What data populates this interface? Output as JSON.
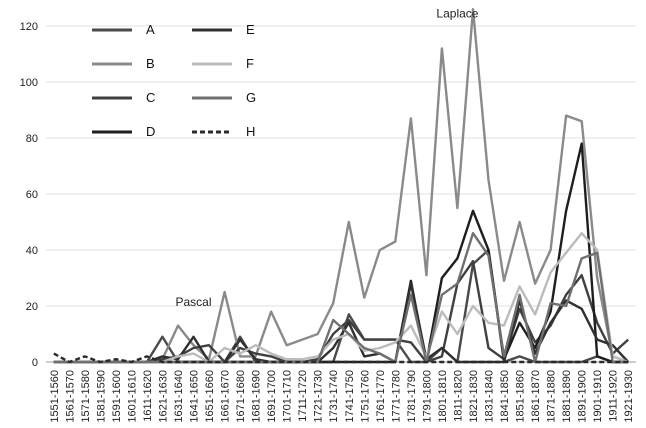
{
  "chart_data": {
    "type": "line",
    "ylim": [
      0,
      120
    ],
    "yticks": [
      0,
      20,
      40,
      60,
      80,
      100,
      120
    ],
    "grid": true,
    "legend_position": "top-left",
    "categories": [
      "1551-1560",
      "1561-1570",
      "1571-1580",
      "1581-1590",
      "1591-1600",
      "1601-1610",
      "1611-1620",
      "1621-1630",
      "1631-1640",
      "1641-1650",
      "1651-1660",
      "1661-1670",
      "1671-1680",
      "1681-1690",
      "1691-1700",
      "1701-1710",
      "1711-1720",
      "1721-1730",
      "1731-1740",
      "1741-1750",
      "1751-1760",
      "1761-1770",
      "1771-1780",
      "1781-1790",
      "1791-1800",
      "1801-1810",
      "1811-1820",
      "1821-1830",
      "1831-1840",
      "1841-1850",
      "1851-1860",
      "1861-1870",
      "1871-1880",
      "1881-1890",
      "1891-1900",
      "1901-1910",
      "1911-1920",
      "1921-1930"
    ],
    "series": [
      {
        "name": "A",
        "color": "#4a4a4a",
        "dash": "",
        "values": [
          0,
          0,
          0,
          0,
          0,
          0,
          0,
          9,
          0,
          0,
          0,
          0,
          9,
          0,
          0,
          0,
          0,
          0,
          0,
          17,
          8,
          8,
          8,
          0,
          0,
          5,
          0,
          35,
          40,
          0,
          2,
          0,
          0,
          0,
          0,
          2,
          0,
          0
        ]
      },
      {
        "name": "B",
        "color": "#8a8a8a",
        "dash": "",
        "values": [
          0,
          0,
          0,
          0,
          0,
          0,
          0,
          1,
          13,
          6,
          1,
          25,
          2,
          2,
          18,
          6,
          8,
          10,
          21,
          50,
          23,
          40,
          43,
          87,
          31,
          112,
          55,
          126,
          65,
          29,
          50,
          28,
          40,
          88,
          86,
          30,
          2,
          0
        ]
      },
      {
        "name": "C",
        "color": "#404040",
        "dash": "",
        "values": [
          0,
          0,
          0,
          0,
          0,
          0,
          0,
          1,
          2,
          5,
          6,
          0,
          5,
          3,
          2,
          0,
          0,
          1,
          10,
          15,
          8,
          8,
          8,
          7,
          0,
          2,
          28,
          36,
          5,
          1,
          19,
          7,
          13,
          24,
          31,
          14,
          3,
          8
        ]
      },
      {
        "name": "D",
        "color": "#1e1e1e",
        "dash": "",
        "values": [
          0,
          0,
          0,
          0,
          0,
          0,
          0,
          0,
          0,
          0,
          0,
          0,
          0,
          0,
          0,
          0,
          0,
          0,
          0,
          0,
          0,
          0,
          0,
          29,
          0,
          30,
          37,
          54,
          40,
          1,
          14,
          5,
          18,
          54,
          78,
          2,
          0,
          0
        ]
      },
      {
        "name": "E",
        "color": "#303030",
        "dash": "",
        "values": [
          0,
          0,
          0,
          0,
          0,
          0,
          0,
          2,
          1,
          9,
          0,
          0,
          8,
          1,
          0,
          0,
          0,
          0,
          5,
          14,
          2,
          3,
          0,
          28,
          1,
          5,
          0,
          0,
          0,
          0,
          22,
          3,
          14,
          22,
          19,
          8,
          6,
          0
        ]
      },
      {
        "name": "F",
        "color": "#bcbcbc",
        "dash": "",
        "values": [
          0,
          0,
          0,
          0,
          0,
          0,
          0,
          0,
          2,
          3,
          0,
          5,
          3,
          6,
          3,
          1,
          1,
          2,
          8,
          10,
          4,
          5,
          7,
          13,
          2,
          18,
          10,
          20,
          14,
          13,
          27,
          17,
          32,
          39,
          46,
          40,
          2,
          0
        ]
      },
      {
        "name": "G",
        "color": "#707070",
        "dash": "",
        "values": [
          0,
          0,
          0,
          0,
          0,
          0,
          0,
          0,
          0,
          0,
          0,
          0,
          0,
          0,
          0,
          0,
          0,
          0,
          15,
          10,
          5,
          3,
          0,
          24,
          0,
          24,
          28,
          46,
          38,
          2,
          24,
          0,
          21,
          20,
          37,
          39,
          0,
          0
        ]
      },
      {
        "name": "H",
        "color": "#2a2a2a",
        "dash": "5,3",
        "values": [
          3,
          0,
          2,
          0,
          1,
          0,
          2,
          0,
          0,
          0,
          0,
          0,
          0,
          0,
          0,
          0,
          0,
          0,
          0,
          0,
          0,
          0,
          0,
          0,
          0,
          0,
          0,
          0,
          0,
          0,
          0,
          0,
          0,
          0,
          0,
          0,
          0,
          0
        ]
      }
    ],
    "annotations": [
      {
        "text": "Laplace",
        "category": "1811-1820",
        "y": 123
      },
      {
        "text": "Pascal",
        "category": "1641-1650",
        "y": 20
      }
    ]
  }
}
